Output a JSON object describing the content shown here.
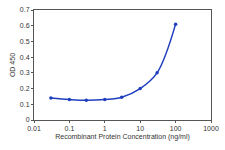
{
  "chart_data": {
    "type": "line",
    "x": [
      0.03,
      0.1,
      0.3,
      1,
      3,
      10,
      30,
      100
    ],
    "values": [
      0.14,
      0.13,
      0.125,
      0.13,
      0.145,
      0.2,
      0.3,
      0.61
    ],
    "xlabel": "Recombinant Protein Concentration (ng/ml)",
    "ylabel": "OD 450",
    "color": "#1f3fbf",
    "marker": "circle",
    "line_style": "solid",
    "log": "x",
    "grid": false,
    "xlim": [
      0.01,
      1000
    ],
    "xticks": [
      0.01,
      0.1,
      1,
      10,
      100,
      1000
    ],
    "ylim": [
      0,
      0.7
    ],
    "yticks": [
      0,
      0.1,
      0.2,
      0.3,
      0.4,
      0.5,
      0.6,
      0.7
    ]
  }
}
